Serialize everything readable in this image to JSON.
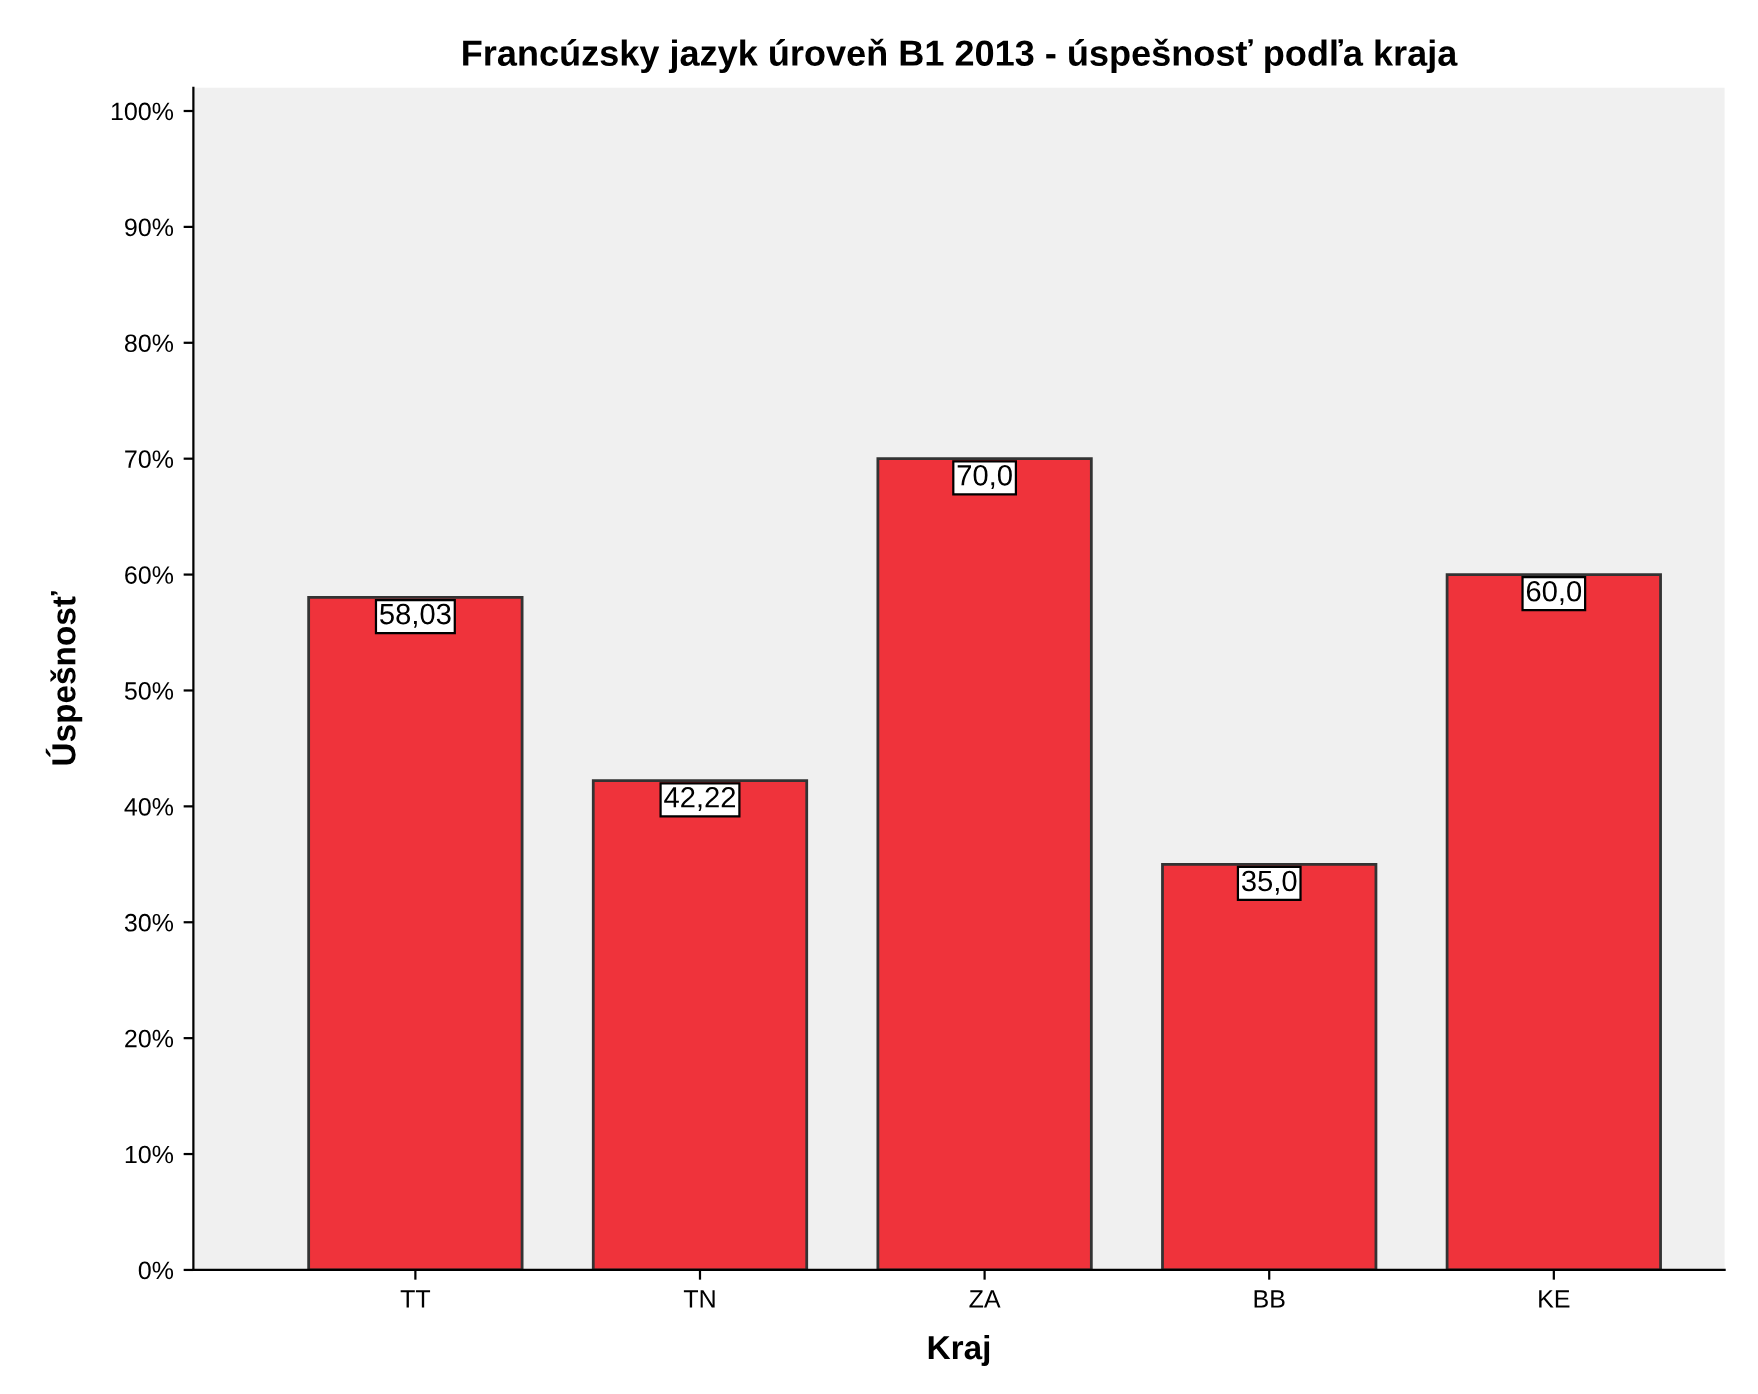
{
  "chart_data": {
    "type": "bar",
    "title": "Francúzsky jazyk úroveň B1 2013 - úspešnosť podľa kraja",
    "xlabel": "Kraj",
    "ylabel": "Úspešnosť",
    "categories": [
      "TT",
      "TN",
      "ZA",
      "BB",
      "KE"
    ],
    "values": [
      58.03,
      42.22,
      70.0,
      35.0,
      60.0
    ],
    "value_labels": [
      "58,03",
      "42,22",
      "70,0",
      "35,0",
      "60,0"
    ],
    "color": "#ef333b",
    "ylim": [
      0,
      102
    ],
    "yticks": [
      {
        "value": 0,
        "label": "0%"
      },
      {
        "value": 10,
        "label": "10%"
      },
      {
        "value": 20,
        "label": "20%"
      },
      {
        "value": 30,
        "label": "30%"
      },
      {
        "value": 40,
        "label": "40%"
      },
      {
        "value": 50,
        "label": "50%"
      },
      {
        "value": 60,
        "label": "60%"
      },
      {
        "value": 70,
        "label": "70%"
      },
      {
        "value": 80,
        "label": "80%"
      },
      {
        "value": 90,
        "label": "90%"
      },
      {
        "value": 100,
        "label": "100%"
      }
    ],
    "grid": false,
    "legend": false
  }
}
